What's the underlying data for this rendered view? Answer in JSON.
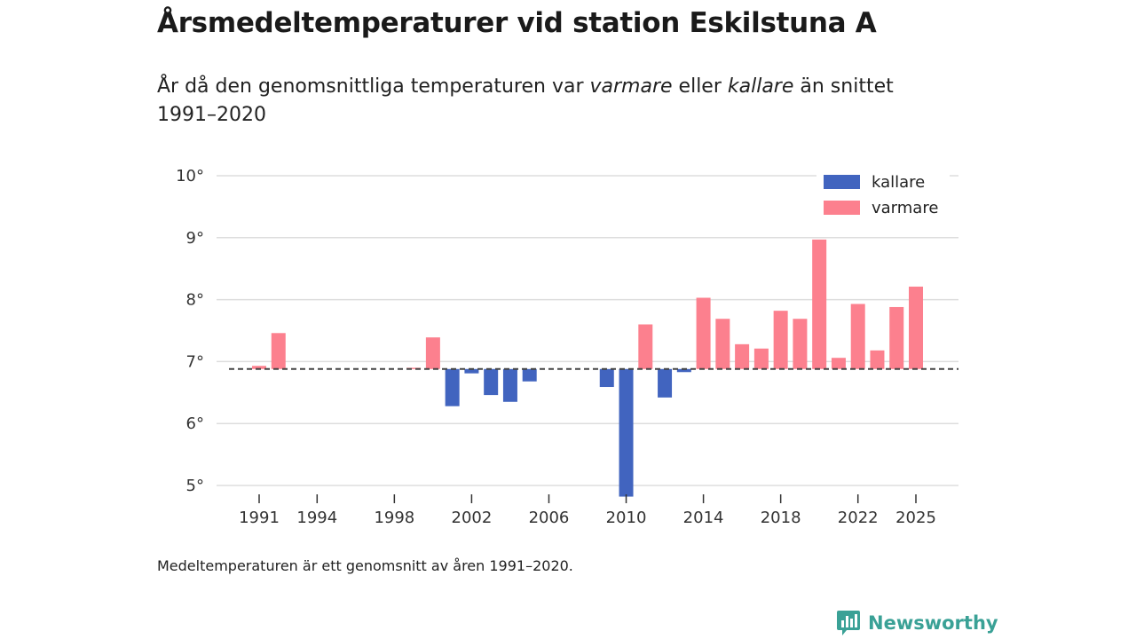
{
  "title": "Årsmedeltemperaturer vid station Eskilstuna A",
  "subtitle": {
    "part1": "År då den genomsnittliga temperaturen var ",
    "warm_word": "varmare",
    "part2": " eller ",
    "cold_word": "kallare",
    "part3": " än snittet 1991–2020"
  },
  "footnote": "Medeltemperaturen är ett genomsnitt av åren 1991–2020.",
  "brand": "Newsworthy",
  "colors": {
    "colder": "#4164bf",
    "warmer": "#fc808e",
    "baseline": "#444444",
    "grid": "#dddddd"
  },
  "chart_data": {
    "type": "bar",
    "title": "Årsmedeltemperaturer vid station Eskilstuna A",
    "xlabel": "",
    "ylabel": "",
    "baseline": 6.88,
    "ylim": [
      5,
      10
    ],
    "yticks": [
      5,
      6,
      7,
      8,
      9,
      10
    ],
    "ytick_labels": [
      "5°",
      "6°",
      "7°",
      "8°",
      "9°",
      "10°"
    ],
    "xticks": [
      1991,
      1994,
      1998,
      2002,
      2006,
      2010,
      2014,
      2018,
      2022,
      2025
    ],
    "xlim": [
      1990,
      2027
    ],
    "legend": [
      {
        "key": "colder",
        "label": "kallare"
      },
      {
        "key": "warmer",
        "label": "varmare"
      }
    ],
    "legend_position": "top-right",
    "years": [
      1991,
      1992,
      1999,
      2000,
      2001,
      2002,
      2003,
      2004,
      2005,
      2009,
      2010,
      2011,
      2012,
      2013,
      2014,
      2015,
      2016,
      2017,
      2018,
      2019,
      2020,
      2021,
      2022,
      2023,
      2024,
      2025
    ],
    "values": [
      6.93,
      7.46,
      6.9,
      7.39,
      6.28,
      6.81,
      6.46,
      6.35,
      6.68,
      6.59,
      4.82,
      7.6,
      6.42,
      6.83,
      8.03,
      7.69,
      7.28,
      7.21,
      7.82,
      7.69,
      8.97,
      7.06,
      7.93,
      7.18,
      7.88,
      8.21
    ]
  }
}
